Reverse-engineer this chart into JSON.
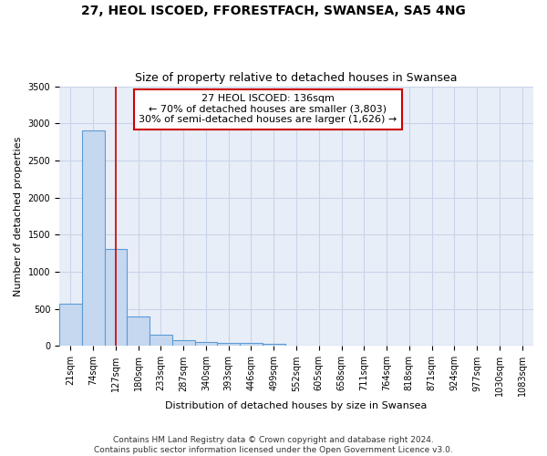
{
  "title": "27, HEOL ISCOED, FFORESTFACH, SWANSEA, SA5 4NG",
  "subtitle": "Size of property relative to detached houses in Swansea",
  "xlabel": "Distribution of detached houses by size in Swansea",
  "ylabel": "Number of detached properties",
  "categories": [
    "21sqm",
    "74sqm",
    "127sqm",
    "180sqm",
    "233sqm",
    "287sqm",
    "340sqm",
    "393sqm",
    "446sqm",
    "499sqm",
    "552sqm",
    "605sqm",
    "658sqm",
    "711sqm",
    "764sqm",
    "818sqm",
    "871sqm",
    "924sqm",
    "977sqm",
    "1030sqm",
    "1083sqm"
  ],
  "values": [
    570,
    2900,
    1310,
    405,
    155,
    80,
    58,
    48,
    38,
    28,
    0,
    0,
    0,
    0,
    0,
    0,
    0,
    0,
    0,
    0,
    0
  ],
  "bar_color": "#c5d8f0",
  "bar_edge_color": "#5b9bd5",
  "property_line_x": 2,
  "property_line_color": "#cc0000",
  "annotation_text": "27 HEOL ISCOED: 136sqm\n← 70% of detached houses are smaller (3,803)\n30% of semi-detached houses are larger (1,626) →",
  "annotation_box_color": "#ffffff",
  "annotation_box_edge_color": "#cc0000",
  "ylim": [
    0,
    3500
  ],
  "yticks": [
    0,
    500,
    1000,
    1500,
    2000,
    2500,
    3000,
    3500
  ],
  "grid_color": "#c8d4e8",
  "background_color": "#e8eef8",
  "footer_text": "Contains HM Land Registry data © Crown copyright and database right 2024.\nContains public sector information licensed under the Open Government Licence v3.0.",
  "title_fontsize": 10,
  "subtitle_fontsize": 9,
  "xlabel_fontsize": 8,
  "ylabel_fontsize": 8,
  "tick_fontsize": 7,
  "annotation_fontsize": 8,
  "footer_fontsize": 6.5
}
